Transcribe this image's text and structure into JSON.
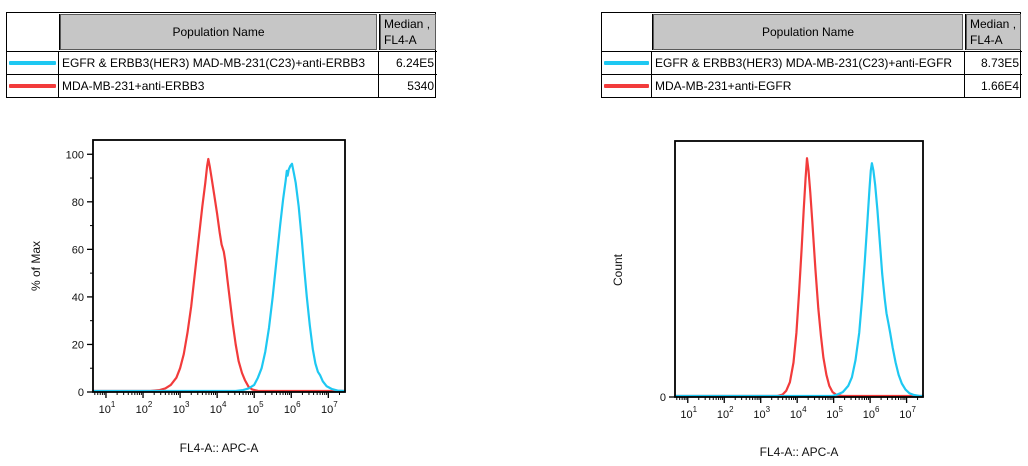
{
  "tables": [
    {
      "header": {
        "population_label": "Population Name",
        "median_line1": "Median ,",
        "median_line2": "FL4-A"
      },
      "rows": [
        {
          "swatch_color": "#1ec8f2",
          "name": "EGFR & ERBB3(HER3) MAD-MB-231(C23)+anti-ERBB3",
          "median": "6.24E5"
        },
        {
          "swatch_color": "#f23b3b",
          "name": "MDA-MB-231+anti-ERBB3",
          "median": "5340"
        }
      ]
    },
    {
      "header": {
        "population_label": "Population Name",
        "median_line1": "Median ,",
        "median_line2": "FL4-A"
      },
      "rows": [
        {
          "swatch_color": "#1ec8f2",
          "name": "EGFR & ERBB3(HER3) MDA-MB-231(C23)+anti-EGFR",
          "median": "8.73E5"
        },
        {
          "swatch_color": "#f23b3b",
          "name": "MDA-MB-231+anti-EGFR",
          "median": "1.66E4"
        }
      ]
    }
  ],
  "chart_data": [
    {
      "type": "line",
      "title": "",
      "xlabel": "FL4-A:: APC-A",
      "ylabel": "% of Max",
      "x_scale": "log10",
      "xlim_log10": [
        0.65,
        7.45
      ],
      "xticks_exponents": [
        1,
        2,
        3,
        4,
        5,
        6,
        7
      ],
      "yticks": [
        0,
        20,
        40,
        60,
        80,
        100
      ],
      "y_minor_ticks": [
        10,
        30,
        50,
        70,
        90
      ],
      "ylim": [
        0,
        106
      ],
      "grid": false,
      "legend": "table-above",
      "frame_color": "#000000",
      "series": [
        {
          "name": "MDA-MB-231+anti-ERBB3",
          "color": "#f23b3b",
          "points_log10x_pct": [
            [
              0.65,
              0.4
            ],
            [
              2.2,
              0.4
            ],
            [
              2.45,
              0.8
            ],
            [
              2.6,
              1.5
            ],
            [
              2.75,
              3
            ],
            [
              2.9,
              6
            ],
            [
              3.0,
              10
            ],
            [
              3.1,
              16
            ],
            [
              3.2,
              25
            ],
            [
              3.3,
              36
            ],
            [
              3.4,
              50
            ],
            [
              3.5,
              64
            ],
            [
              3.6,
              78
            ],
            [
              3.68,
              88
            ],
            [
              3.73,
              95
            ],
            [
              3.76,
              98
            ],
            [
              3.8,
              95
            ],
            [
              3.85,
              90
            ],
            [
              3.92,
              83
            ],
            [
              4.0,
              75
            ],
            [
              4.07,
              67
            ],
            [
              4.12,
              62
            ],
            [
              4.18,
              59
            ],
            [
              4.22,
              55
            ],
            [
              4.28,
              47
            ],
            [
              4.35,
              38
            ],
            [
              4.42,
              29
            ],
            [
              4.5,
              20
            ],
            [
              4.58,
              13
            ],
            [
              4.67,
              8
            ],
            [
              4.75,
              5
            ],
            [
              4.85,
              2.2
            ],
            [
              4.95,
              1.0
            ],
            [
              5.1,
              0.5
            ],
            [
              5.3,
              0.4
            ],
            [
              7.45,
              0.4
            ]
          ]
        },
        {
          "name": "EGFR & ERBB3(HER3) MAD-MB-231(C23)+anti-ERBB3",
          "color": "#1ec8f2",
          "points_log10x_pct": [
            [
              0.65,
              0.4
            ],
            [
              4.5,
              0.4
            ],
            [
              4.7,
              0.8
            ],
            [
              4.85,
              1.5
            ],
            [
              5.0,
              3
            ],
            [
              5.1,
              6
            ],
            [
              5.2,
              10
            ],
            [
              5.3,
              17
            ],
            [
              5.4,
              27
            ],
            [
              5.5,
              40
            ],
            [
              5.6,
              55
            ],
            [
              5.7,
              70
            ],
            [
              5.78,
              81
            ],
            [
              5.85,
              89
            ],
            [
              5.88,
              93
            ],
            [
              5.9,
              91
            ],
            [
              5.93,
              93.5
            ],
            [
              5.97,
              95
            ],
            [
              6.02,
              96
            ],
            [
              6.07,
              92
            ],
            [
              6.12,
              88
            ],
            [
              6.2,
              78
            ],
            [
              6.28,
              65
            ],
            [
              6.35,
              52
            ],
            [
              6.42,
              40
            ],
            [
              6.5,
              28
            ],
            [
              6.58,
              18
            ],
            [
              6.65,
              12
            ],
            [
              6.72,
              8.5
            ],
            [
              6.78,
              7
            ],
            [
              6.85,
              4.5
            ],
            [
              6.95,
              2.5
            ],
            [
              7.1,
              1.2
            ],
            [
              7.25,
              0.6
            ],
            [
              7.45,
              0.4
            ]
          ]
        }
      ]
    },
    {
      "type": "line",
      "title": "",
      "xlabel": "FL4-A:: APC-A",
      "ylabel": "Count",
      "x_scale": "log10",
      "xlim_log10": [
        0.65,
        7.45
      ],
      "xticks_exponents": [
        1,
        2,
        3,
        4,
        5,
        6,
        7
      ],
      "yticks": [
        0
      ],
      "y_minor_ticks": [],
      "ylim": [
        0,
        104
      ],
      "grid": false,
      "legend": "table-above",
      "frame_color": "#000000",
      "series": [
        {
          "name": "MDA-MB-231+anti-EGFR",
          "color": "#f23b3b",
          "points_log10x_pct": [
            [
              0.65,
              0.4
            ],
            [
              3.45,
              0.4
            ],
            [
              3.6,
              1
            ],
            [
              3.7,
              2.5
            ],
            [
              3.8,
              6
            ],
            [
              3.9,
              14
            ],
            [
              3.98,
              26
            ],
            [
              4.05,
              42
            ],
            [
              4.12,
              60
            ],
            [
              4.18,
              76
            ],
            [
              4.23,
              89
            ],
            [
              4.27,
              97
            ],
            [
              4.31,
              92
            ],
            [
              4.36,
              83
            ],
            [
              4.42,
              70
            ],
            [
              4.5,
              52
            ],
            [
              4.58,
              36
            ],
            [
              4.65,
              25
            ],
            [
              4.72,
              16
            ],
            [
              4.8,
              9
            ],
            [
              4.88,
              4.5
            ],
            [
              4.97,
              2
            ],
            [
              5.08,
              0.8
            ],
            [
              5.25,
              0.4
            ],
            [
              7.45,
              0.4
            ]
          ]
        },
        {
          "name": "EGFR & ERBB3(HER3) MDA-MB-231(C23)+anti-EGFR",
          "color": "#1ec8f2",
          "points_log10x_pct": [
            [
              0.65,
              0.4
            ],
            [
              4.95,
              0.4
            ],
            [
              5.1,
              1
            ],
            [
              5.25,
              2
            ],
            [
              5.4,
              4.5
            ],
            [
              5.5,
              8
            ],
            [
              5.6,
              15
            ],
            [
              5.7,
              26
            ],
            [
              5.78,
              40
            ],
            [
              5.85,
              54
            ],
            [
              5.92,
              70
            ],
            [
              5.98,
              84
            ],
            [
              6.02,
              92
            ],
            [
              6.05,
              95
            ],
            [
              6.09,
              92
            ],
            [
              6.14,
              86
            ],
            [
              6.2,
              76
            ],
            [
              6.27,
              62
            ],
            [
              6.33,
              50
            ],
            [
              6.4,
              40
            ],
            [
              6.45,
              34
            ],
            [
              6.5,
              30
            ],
            [
              6.55,
              26
            ],
            [
              6.62,
              20
            ],
            [
              6.7,
              14
            ],
            [
              6.78,
              9
            ],
            [
              6.87,
              5.5
            ],
            [
              6.97,
              3
            ],
            [
              7.08,
              1.5
            ],
            [
              7.2,
              0.8
            ],
            [
              7.35,
              0.4
            ],
            [
              7.45,
              0.4
            ]
          ]
        }
      ]
    }
  ]
}
